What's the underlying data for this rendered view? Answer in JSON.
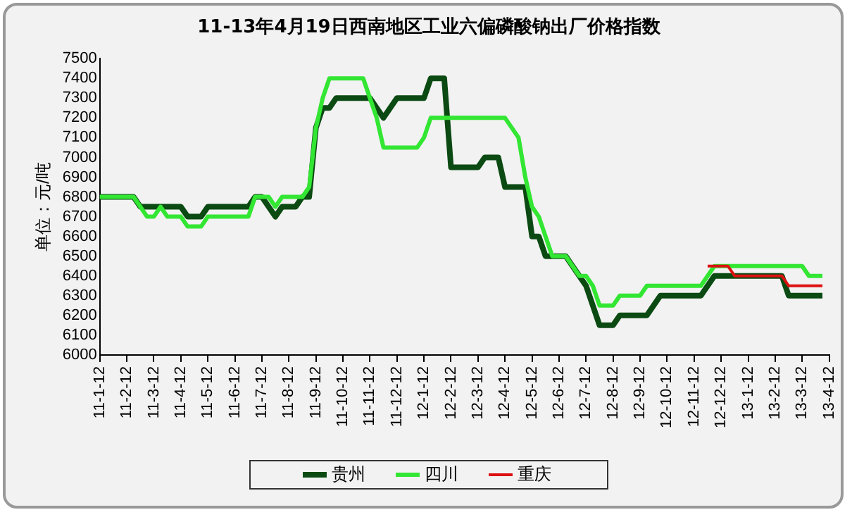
{
  "chart_data": {
    "type": "line",
    "title": "11-13年4月19日西南地区工业六偏磷酸钠出厂价格指数",
    "ylabel": "单位：元/吨",
    "categories": [
      "11-1-12",
      null,
      null,
      null,
      "11-2-12",
      null,
      null,
      null,
      "11-3-12",
      null,
      null,
      null,
      "11-4-12",
      null,
      null,
      null,
      "11-5-12",
      null,
      null,
      null,
      "11-6-12",
      null,
      null,
      null,
      "11-7-12",
      null,
      null,
      null,
      "11-8-12",
      null,
      null,
      null,
      "11-9-12",
      null,
      null,
      null,
      "11-10-12",
      null,
      null,
      null,
      "11-11-12",
      null,
      null,
      null,
      "11-12-12",
      null,
      null,
      null,
      "12-1-12",
      null,
      null,
      null,
      "12-2-12",
      null,
      null,
      null,
      "12-3-12",
      null,
      null,
      null,
      "12-4-12",
      null,
      null,
      null,
      "12-5-12",
      null,
      null,
      null,
      "12-6-12",
      null,
      null,
      null,
      "12-7-12",
      null,
      null,
      null,
      "12-8-12",
      null,
      null,
      null,
      "12-9-12",
      null,
      null,
      null,
      "12-10-12",
      null,
      null,
      null,
      "12-11-12",
      null,
      null,
      null,
      "12-12-12",
      null,
      null,
      null,
      "13-1-12",
      null,
      null,
      null,
      "13-2-12",
      null,
      null,
      null,
      "13-3-12",
      null,
      null,
      null,
      "13-4-12"
    ],
    "ylim": [
      6000,
      7500
    ],
    "yticks": [
      6000,
      6100,
      6200,
      6300,
      6400,
      6500,
      6600,
      6700,
      6800,
      6900,
      7000,
      7100,
      7200,
      7300,
      7400,
      7500
    ],
    "grid": false,
    "legend": "bottom",
    "marker": "none",
    "line_style": "solid",
    "series": [
      {
        "name": "贵州",
        "color": "#0b4a12",
        "values": [
          6800,
          6800,
          6800,
          6800,
          6800,
          6800,
          6750,
          6750,
          6750,
          6750,
          6750,
          6750,
          6750,
          6700,
          6700,
          6700,
          6750,
          6750,
          6750,
          6750,
          6750,
          6750,
          6750,
          6800,
          6800,
          6750,
          6700,
          6750,
          6750,
          6750,
          6800,
          6800,
          7150,
          7250,
          7250,
          7300,
          7300,
          7300,
          7300,
          7300,
          7300,
          7250,
          7200,
          7250,
          7300,
          7300,
          7300,
          7300,
          7300,
          7400,
          7400,
          7400,
          6950,
          6950,
          6950,
          6950,
          6950,
          7000,
          7000,
          7000,
          6850,
          6850,
          6850,
          6850,
          6600,
          6600,
          6500,
          6500,
          6500,
          6500,
          6450,
          6400,
          6350,
          6250,
          6150,
          6150,
          6150,
          6200,
          6200,
          6200,
          6200,
          6200,
          6250,
          6300,
          6300,
          6300,
          6300,
          6300,
          6300,
          6300,
          6350,
          6400,
          6400,
          6400,
          6400,
          6400,
          6400,
          6400,
          6400,
          6400,
          6400,
          6400,
          6300,
          6300,
          6300,
          6300,
          6300,
          6300,
          null
        ]
      },
      {
        "name": "四川",
        "color": "#33e633",
        "values": [
          6800,
          6800,
          6800,
          6800,
          6800,
          6800,
          6750,
          6700,
          6700,
          6750,
          6700,
          6700,
          6700,
          6650,
          6650,
          6650,
          6700,
          6700,
          6700,
          6700,
          6700,
          6700,
          6700,
          6800,
          6800,
          6800,
          6750,
          6800,
          6800,
          6800,
          6800,
          6850,
          7150,
          7300,
          7400,
          7400,
          7400,
          7400,
          7400,
          7400,
          7300,
          7200,
          7050,
          7050,
          7050,
          7050,
          7050,
          7050,
          7100,
          7200,
          7200,
          7200,
          7200,
          7200,
          7200,
          7200,
          7200,
          7200,
          7200,
          7200,
          7200,
          7150,
          7100,
          6900,
          6750,
          6700,
          6600,
          6500,
          6500,
          6500,
          6450,
          6400,
          6400,
          6350,
          6250,
          6250,
          6250,
          6300,
          6300,
          6300,
          6300,
          6350,
          6350,
          6350,
          6350,
          6350,
          6350,
          6350,
          6350,
          6350,
          6400,
          6450,
          6450,
          6450,
          6450,
          6450,
          6450,
          6450,
          6450,
          6450,
          6450,
          6450,
          6450,
          6450,
          6450,
          6400,
          6400,
          6400,
          null
        ]
      },
      {
        "name": "重庆",
        "color": "#dd1111",
        "values": [
          null,
          null,
          null,
          null,
          null,
          null,
          null,
          null,
          null,
          null,
          null,
          null,
          null,
          null,
          null,
          null,
          null,
          null,
          null,
          null,
          null,
          null,
          null,
          null,
          null,
          null,
          null,
          null,
          null,
          null,
          null,
          null,
          null,
          null,
          null,
          null,
          null,
          null,
          null,
          null,
          null,
          null,
          null,
          null,
          null,
          null,
          null,
          null,
          null,
          null,
          null,
          null,
          null,
          null,
          null,
          null,
          null,
          null,
          null,
          null,
          null,
          null,
          null,
          null,
          null,
          null,
          null,
          null,
          null,
          null,
          null,
          null,
          null,
          null,
          null,
          null,
          null,
          null,
          null,
          null,
          null,
          null,
          null,
          null,
          null,
          null,
          null,
          null,
          null,
          null,
          6450,
          6450,
          6450,
          6450,
          6400,
          6400,
          6400,
          6400,
          6400,
          6400,
          6400,
          6400,
          6350,
          6350,
          6350,
          6350,
          6350,
          6350,
          null
        ]
      }
    ]
  }
}
